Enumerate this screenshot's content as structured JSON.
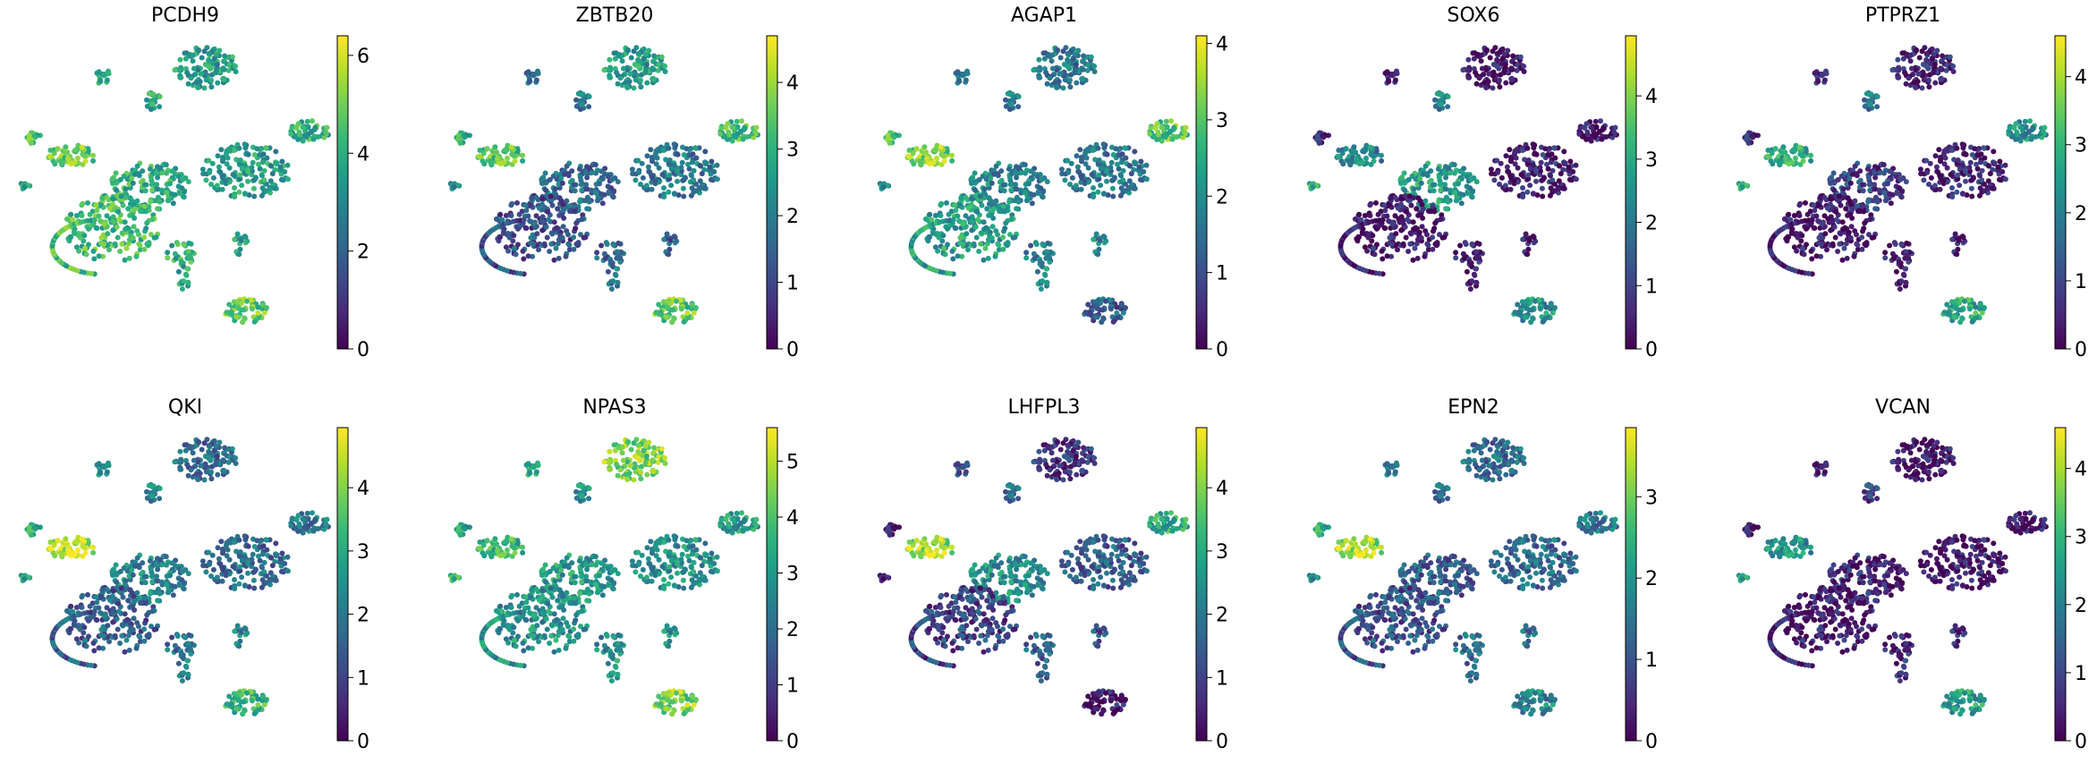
{
  "colormap": {
    "name": "viridis",
    "stops": [
      "#440154",
      "#482878",
      "#3e4989",
      "#31688e",
      "#26828e",
      "#1f9e89",
      "#35b779",
      "#6ece58",
      "#b5de2b",
      "#fde725"
    ]
  },
  "chart_data": [
    {
      "type": "scatter",
      "embedding": "umap",
      "title": "PCDH9",
      "colorbar_range": [
        0,
        6.4
      ],
      "colorbar_ticks": [
        "0",
        "2",
        "4",
        "6"
      ],
      "colorbar_tick_values": [
        0,
        2,
        4,
        6
      ]
    },
    {
      "type": "scatter",
      "embedding": "umap",
      "title": "ZBTB20",
      "colorbar_range": [
        0,
        4.7
      ],
      "colorbar_ticks": [
        "0",
        "1",
        "2",
        "3",
        "4"
      ],
      "colorbar_tick_values": [
        0,
        1,
        2,
        3,
        4
      ]
    },
    {
      "type": "scatter",
      "embedding": "umap",
      "title": "AGAP1",
      "colorbar_range": [
        0,
        4.1
      ],
      "colorbar_ticks": [
        "0",
        "1",
        "2",
        "3",
        "4"
      ],
      "colorbar_tick_values": [
        0,
        1,
        2,
        3,
        4
      ]
    },
    {
      "type": "scatter",
      "embedding": "umap",
      "title": "SOX6",
      "colorbar_range": [
        0,
        4.95
      ],
      "colorbar_ticks": [
        "0",
        "1",
        "2",
        "3",
        "4"
      ],
      "colorbar_tick_values": [
        0,
        1,
        2,
        3,
        4
      ]
    },
    {
      "type": "scatter",
      "embedding": "umap",
      "title": "PTPRZ1",
      "colorbar_range": [
        0,
        4.6
      ],
      "colorbar_ticks": [
        "0",
        "1",
        "2",
        "3",
        "4"
      ],
      "colorbar_tick_values": [
        0,
        1,
        2,
        3,
        4
      ]
    },
    {
      "type": "scatter",
      "embedding": "umap",
      "title": "QKI",
      "colorbar_range": [
        0,
        4.95
      ],
      "colorbar_ticks": [
        "0",
        "1",
        "2",
        "3",
        "4"
      ],
      "colorbar_tick_values": [
        0,
        1,
        2,
        3,
        4
      ]
    },
    {
      "type": "scatter",
      "embedding": "umap",
      "title": "NPAS3",
      "colorbar_range": [
        0,
        5.6
      ],
      "colorbar_ticks": [
        "0",
        "1",
        "2",
        "3",
        "4",
        "5"
      ],
      "colorbar_tick_values": [
        0,
        1,
        2,
        3,
        4,
        5
      ]
    },
    {
      "type": "scatter",
      "embedding": "umap",
      "title": "LHFPL3",
      "colorbar_range": [
        0,
        4.95
      ],
      "colorbar_ticks": [
        "0",
        "1",
        "2",
        "3",
        "4"
      ],
      "colorbar_tick_values": [
        0,
        1,
        2,
        3,
        4
      ]
    },
    {
      "type": "scatter",
      "embedding": "umap",
      "title": "EPN2",
      "colorbar_range": [
        0,
        3.85
      ],
      "colorbar_ticks": [
        "0",
        "1",
        "2",
        "3"
      ],
      "colorbar_tick_values": [
        0,
        1,
        2,
        3
      ]
    },
    {
      "type": "scatter",
      "embedding": "umap",
      "title": "VCAN",
      "colorbar_range": [
        0,
        4.6
      ],
      "colorbar_ticks": [
        "0",
        "1",
        "2",
        "3",
        "4"
      ],
      "colorbar_tick_values": [
        0,
        1,
        2,
        3,
        4
      ]
    }
  ]
}
